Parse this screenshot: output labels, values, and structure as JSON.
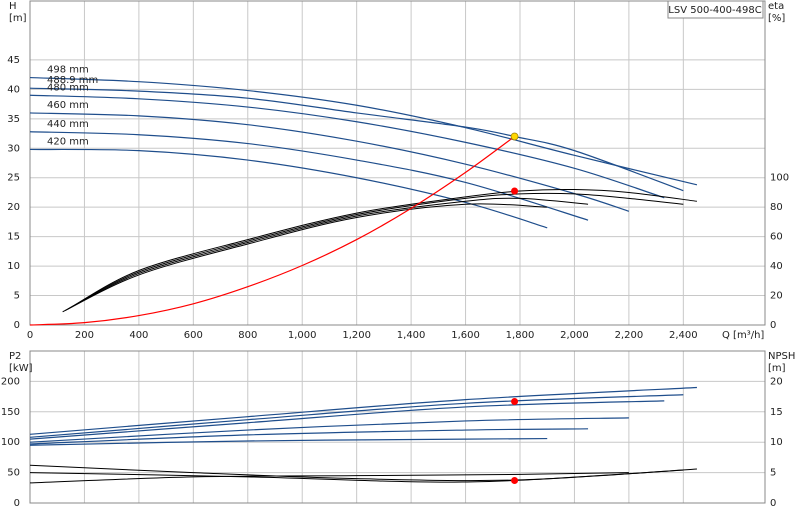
{
  "chart_data": [
    {
      "type": "line",
      "title": "LSV 500-400-498C",
      "x_label": "Q [m³/h]",
      "y_label": "H",
      "y_unit": "[m]",
      "y2_label": "eta",
      "y2_unit": "[%]",
      "xlim": [
        0,
        2700
      ],
      "xticks": [
        0,
        200,
        400,
        600,
        800,
        {
          "value": 1000,
          "label": "1,000"
        },
        {
          "value": 1200,
          "label": "1,200"
        },
        {
          "value": 1400,
          "label": "1,400"
        },
        {
          "value": 1600,
          "label": "1,600"
        },
        {
          "value": 1800,
          "label": "1,800"
        },
        {
          "value": 2000,
          "label": "2,000"
        },
        {
          "value": 2200,
          "label": "2,200"
        },
        {
          "value": 2400,
          "label": "2,400"
        }
      ],
      "ylim": [
        0,
        55
      ],
      "yticks": [
        0,
        5,
        10,
        15,
        20,
        25,
        30,
        35,
        40,
        45
      ],
      "y2lim": [
        0,
        220
      ],
      "y2ticks": [
        0,
        20,
        40,
        60,
        80,
        100
      ],
      "grid": true,
      "series": [
        {
          "name": "498 mm",
          "color": "#1f4e8c",
          "x": [
            0,
            400,
            800,
            1200,
            1600,
            2000,
            2450
          ],
          "values": [
            42,
            41.3,
            39.8,
            37.3,
            33.5,
            28.8,
            23.8
          ]
        },
        {
          "name": "488.9 mm",
          "color": "#1f4e8c",
          "x": [
            0,
            400,
            800,
            1200,
            1600,
            1780,
            2000,
            2400
          ],
          "values": [
            40.2,
            39.7,
            38.5,
            36,
            33.6,
            32,
            29.6,
            22.8
          ]
        },
        {
          "name": "480 mm",
          "color": "#1f4e8c",
          "x": [
            0,
            400,
            800,
            1200,
            1600,
            2000,
            2330
          ],
          "values": [
            39,
            38.4,
            37,
            34.5,
            31,
            26.6,
            21.6
          ]
        },
        {
          "name": "460 mm",
          "color": "#1f4e8c",
          "x": [
            0,
            400,
            800,
            1200,
            1600,
            2000,
            2200
          ],
          "values": [
            36,
            35.5,
            34,
            31.2,
            27.3,
            22.3,
            19.3
          ]
        },
        {
          "name": "440 mm",
          "color": "#1f4e8c",
          "x": [
            0,
            400,
            800,
            1200,
            1600,
            2050
          ],
          "values": [
            32.8,
            32.3,
            30.8,
            28,
            24.2,
            17.8
          ]
        },
        {
          "name": "420 mm",
          "color": "#1f4e8c",
          "x": [
            0,
            400,
            800,
            1200,
            1600,
            1900
          ],
          "values": [
            29.8,
            29.6,
            28,
            25,
            20.8,
            16.5
          ]
        },
        {
          "color": "#000000",
          "axis": "y2",
          "x": [
            150,
            400,
            800,
            1200,
            1600,
            1800,
            2000,
            2200,
            2450
          ],
          "values": [
            12,
            37,
            58,
            76,
            87,
            91,
            92,
            90,
            84
          ]
        },
        {
          "color": "#000000",
          "axis": "y2",
          "x": [
            140,
            400,
            800,
            1200,
            1600,
            1800,
            2000,
            2200,
            2400
          ],
          "values": [
            11,
            36,
            57,
            75,
            86,
            89,
            89,
            86,
            82
          ]
        },
        {
          "color": "#000000",
          "axis": "y2",
          "x": [
            130,
            400,
            800,
            1200,
            1600,
            1800,
            2050
          ],
          "values": [
            10,
            35,
            56,
            74,
            84,
            86,
            82
          ]
        },
        {
          "color": "#000000",
          "axis": "y2",
          "x": [
            120,
            400,
            800,
            1200,
            1600,
            1900
          ],
          "values": [
            9,
            34,
            55,
            73,
            82,
            80
          ]
        },
        {
          "color": "#ff0000",
          "x": [
            0,
            200,
            400,
            600,
            800,
            1000,
            1200,
            1400,
            1600,
            1780
          ],
          "values": [
            0,
            0.4,
            1.6,
            3.6,
            6.5,
            10.1,
            14.5,
            19.8,
            25.9,
            32
          ]
        }
      ],
      "points": [
        {
          "x": 1780,
          "value": 32,
          "color": "#ffd700"
        },
        {
          "x": 1780,
          "value": 91,
          "axis": "y2",
          "color": "#ff0000"
        }
      ]
    },
    {
      "type": "line",
      "y_label": "P2",
      "y_unit": "[kW]",
      "y2_label": "NPSH",
      "y2_unit": "[m]",
      "xlim": [
        0,
        2700
      ],
      "ylim": [
        0,
        250
      ],
      "yticks": [
        0,
        50,
        100,
        150,
        200
      ],
      "y2lim": [
        0,
        25
      ],
      "y2ticks": [
        0,
        5,
        10,
        15,
        20
      ],
      "grid": true,
      "series": [
        {
          "color": "#1f4e8c",
          "x": [
            0,
            800,
            1600,
            2450
          ],
          "values": [
            113,
            142,
            170,
            190
          ]
        },
        {
          "color": "#1f4e8c",
          "x": [
            0,
            800,
            1600,
            2400
          ],
          "values": [
            108,
            137,
            164,
            178
          ]
        },
        {
          "color": "#1f4e8c",
          "x": [
            0,
            800,
            1600,
            2330
          ],
          "values": [
            105,
            132,
            158,
            168
          ]
        },
        {
          "color": "#1f4e8c",
          "x": [
            0,
            800,
            1600,
            2200
          ],
          "values": [
            100,
            120,
            135,
            140
          ]
        },
        {
          "color": "#1f4e8c",
          "x": [
            0,
            800,
            1600,
            2050
          ],
          "values": [
            97,
            112,
            120,
            122
          ]
        },
        {
          "color": "#1f4e8c",
          "x": [
            0,
            800,
            1600,
            1900
          ],
          "values": [
            95,
            102,
            105,
            106
          ]
        },
        {
          "color": "#000000",
          "axis": "y2",
          "x": [
            0,
            600,
            1200,
            1800,
            2450
          ],
          "values": [
            6.2,
            5,
            4,
            3.8,
            5.6
          ]
        },
        {
          "color": "#000000",
          "axis": "y2",
          "x": [
            0,
            600,
            1200,
            1800,
            2200
          ],
          "values": [
            3.3,
            4.3,
            4.5,
            4.7,
            5
          ]
        },
        {
          "color": "#000000",
          "axis": "y2",
          "x": [
            0,
            800,
            1400,
            1780,
            2400
          ],
          "values": [
            5,
            4.3,
            3.5,
            3.7,
            5.4
          ]
        }
      ],
      "points": [
        {
          "x": 1780,
          "value": 167,
          "color": "#ff0000"
        },
        {
          "x": 1780,
          "value": 3.7,
          "axis": "y2",
          "color": "#ff0000"
        }
      ]
    }
  ]
}
